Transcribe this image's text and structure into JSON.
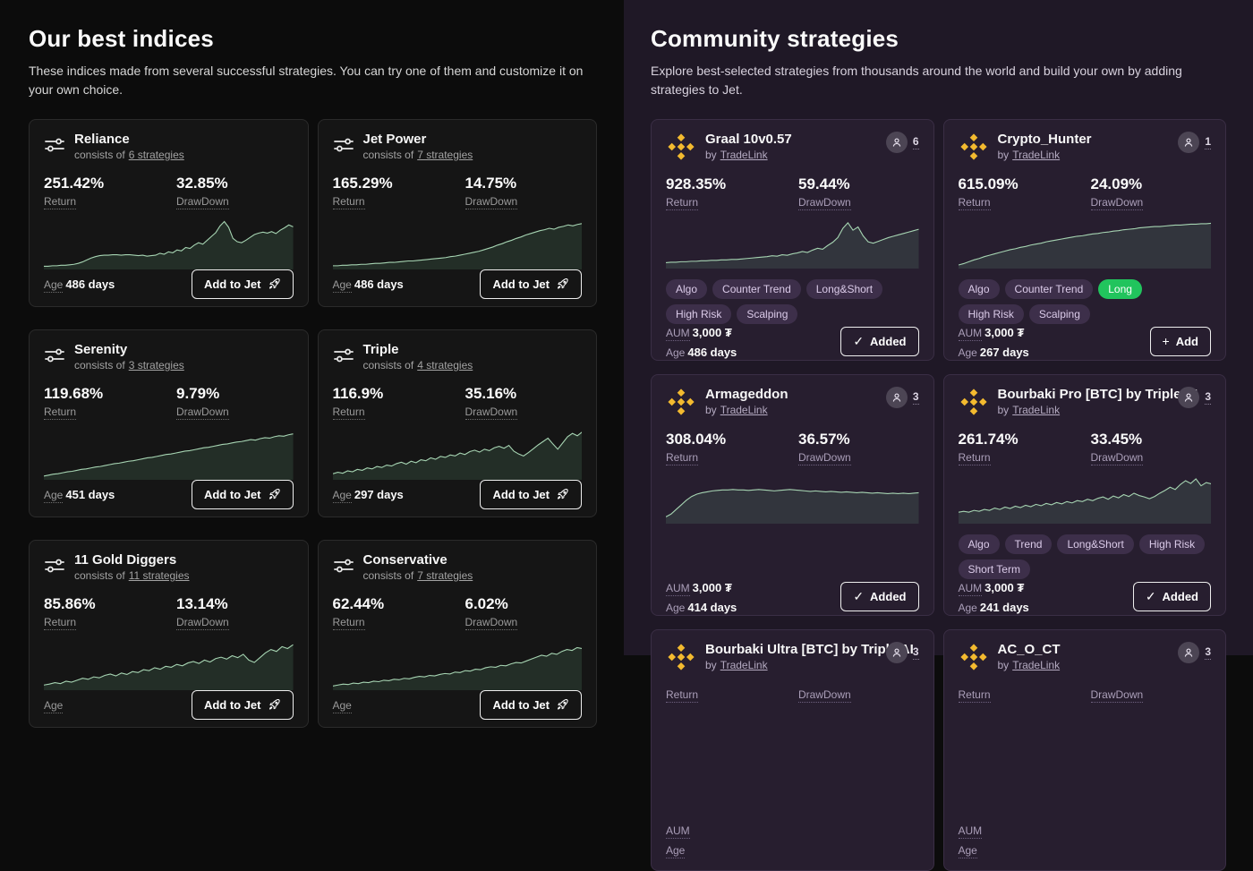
{
  "labels": {
    "consists_prefix": "consists of",
    "return": "Return",
    "drawdown": "DrawDown",
    "age": "Age",
    "aum": "AUM",
    "by": "by",
    "add_to_jet": "Add to Jet",
    "added": "Added",
    "add": "Add"
  },
  "icons": {
    "check": "✓",
    "plus": "+"
  },
  "colors": {
    "left_bg": "#0c0c0c",
    "right_bg": "#1f1826",
    "index_card_bg": "#151515",
    "strategy_card_bg": "#271e2f",
    "chart_line": "#a6d4b2",
    "chart_fill": "rgba(122,199,147,0.14)",
    "tag_bg": "#3d2f4a",
    "tag_green": "#21c45d",
    "binance_gold": "#f3ba2f"
  },
  "indices": {
    "title": "Our best indices",
    "subtitle": "These indices made from several successful strategies. You can try one of them and customize it on your own choice.",
    "cards": [
      {
        "name": "Reliance",
        "strategies_link": "6 strategies",
        "return": "251.42%",
        "drawdown": "32.85%",
        "age": "486 days",
        "sparkline": [
          4,
          4,
          5,
          5,
          6,
          6,
          7,
          8,
          10,
          13,
          17,
          21,
          24,
          26,
          27,
          27,
          28,
          28,
          27,
          28,
          28,
          27,
          26,
          27,
          25,
          26,
          27,
          31,
          29,
          34,
          32,
          38,
          36,
          43,
          41,
          48,
          53,
          50,
          58,
          66,
          74,
          88,
          97,
          85,
          62,
          55,
          53,
          58,
          64,
          70,
          73,
          75,
          73,
          76,
          72,
          79,
          84,
          90,
          86
        ]
      },
      {
        "name": "Jet Power",
        "strategies_link": "7 strategies",
        "return": "165.29%",
        "drawdown": "14.75%",
        "age": "486 days",
        "sparkline": [
          5,
          5,
          6,
          6,
          7,
          7,
          8,
          8,
          9,
          10,
          10,
          11,
          12,
          12,
          13,
          14,
          15,
          15,
          16,
          17,
          18,
          19,
          20,
          21,
          22,
          24,
          25,
          27,
          29,
          31,
          33,
          35,
          38,
          41,
          44,
          48,
          51,
          55,
          58,
          62,
          65,
          69,
          72,
          75,
          78,
          80,
          83,
          81,
          85,
          87,
          90,
          88,
          91,
          93
        ]
      },
      {
        "name": "Serenity",
        "strategies_link": "3 strategies",
        "return": "119.68%",
        "drawdown": "9.79%",
        "age": "451 days",
        "sparkline": [
          5,
          7,
          9,
          10,
          12,
          14,
          15,
          17,
          19,
          20,
          22,
          24,
          25,
          27,
          29,
          31,
          32,
          34,
          36,
          37,
          39,
          41,
          43,
          44,
          46,
          48,
          50,
          51,
          53,
          55,
          57,
          58,
          60,
          62,
          64,
          65,
          67,
          69,
          71,
          72,
          74,
          76,
          77,
          79,
          81,
          80,
          83,
          85,
          84,
          87,
          89,
          88,
          91,
          93
        ]
      },
      {
        "name": "Triple",
        "strategies_link": "4 strategies",
        "return": "116.9%",
        "drawdown": "35.16%",
        "age": "297 days",
        "sparkline": [
          10,
          13,
          11,
          16,
          14,
          19,
          17,
          22,
          20,
          25,
          23,
          28,
          26,
          31,
          34,
          30,
          36,
          33,
          39,
          37,
          43,
          40,
          46,
          44,
          49,
          47,
          53,
          50,
          56,
          59,
          55,
          61,
          58,
          64,
          67,
          63,
          69,
          57,
          51,
          47,
          54,
          62,
          70,
          77,
          84,
          72,
          61,
          74,
          87,
          94,
          89,
          97
        ]
      },
      {
        "name": "11 Gold Diggers",
        "strategies_link": "11 strategies",
        "return": "85.86%",
        "drawdown": "13.14%",
        "age": "",
        "sparkline": [
          8,
          10,
          13,
          11,
          16,
          14,
          18,
          22,
          20,
          25,
          23,
          28,
          31,
          27,
          33,
          30,
          36,
          34,
          40,
          38,
          44,
          41,
          47,
          45,
          51,
          48,
          54,
          57,
          53,
          60,
          56,
          63,
          66,
          62,
          69,
          65,
          72,
          60,
          55,
          65,
          75,
          82,
          78,
          88,
          84,
          92
        ]
      },
      {
        "name": "Conservative",
        "strategies_link": "7 strategies",
        "return": "62.44%",
        "drawdown": "6.02%",
        "age": "",
        "sparkline": [
          6,
          8,
          10,
          9,
          12,
          11,
          14,
          13,
          16,
          15,
          18,
          17,
          20,
          19,
          22,
          21,
          24,
          26,
          25,
          28,
          27,
          30,
          32,
          31,
          35,
          34,
          38,
          37,
          41,
          40,
          44,
          46,
          45,
          49,
          48,
          52,
          55,
          54,
          58,
          62,
          66,
          70,
          68,
          74,
          72,
          78,
          82,
          80,
          86,
          84
        ]
      }
    ]
  },
  "community": {
    "title": "Community strategies",
    "subtitle": "Explore best-selected strategies from thousands around the world and build your own by adding strategies to Jet.",
    "cards": [
      {
        "name": "Graal 10v0.57",
        "author": "TradeLink",
        "copiers": "6",
        "return": "928.35%",
        "drawdown": "59.44%",
        "tags": [
          {
            "label": "Algo"
          },
          {
            "label": "Counter Trend"
          },
          {
            "label": "Long&Short"
          },
          {
            "label": "High Risk"
          },
          {
            "label": "Scalping"
          }
        ],
        "aum": "3,000 ₮",
        "age": "486 days",
        "action": "added",
        "sparkline": [
          10,
          11,
          11,
          12,
          12,
          13,
          13,
          14,
          14,
          15,
          15,
          16,
          16,
          17,
          17,
          18,
          19,
          20,
          21,
          22,
          23,
          25,
          24,
          27,
          26,
          29,
          31,
          34,
          32,
          37,
          41,
          39,
          47,
          54,
          64,
          84,
          96,
          80,
          87,
          68,
          55,
          52,
          56,
          60,
          64,
          67,
          70,
          73,
          76,
          79,
          82
        ]
      },
      {
        "name": "Crypto_Hunter",
        "author": "TradeLink",
        "copiers": "1",
        "return": "615.09%",
        "drawdown": "24.09%",
        "tags": [
          {
            "label": "Algo"
          },
          {
            "label": "Counter Trend"
          },
          {
            "label": "Long",
            "variant": "green"
          },
          {
            "label": "High Risk"
          },
          {
            "label": "Scalping"
          }
        ],
        "aum": "3,000 ₮",
        "age": "267 days",
        "action": "add",
        "sparkline": [
          5,
          8,
          12,
          16,
          19,
          23,
          26,
          29,
          32,
          35,
          38,
          40,
          43,
          45,
          48,
          50,
          52,
          55,
          57,
          59,
          61,
          63,
          65,
          67,
          68,
          70,
          72,
          73,
          75,
          76,
          78,
          79,
          81,
          82,
          83,
          85,
          86,
          87,
          88,
          88,
          89,
          90,
          91,
          91,
          92,
          93,
          93,
          94,
          94,
          95
        ]
      },
      {
        "name": "Armageddon",
        "author": "TradeLink",
        "copiers": "3",
        "return": "308.04%",
        "drawdown": "36.57%",
        "tags": [],
        "aum": "3,000 ₮",
        "age": "414 days",
        "action": "added",
        "sparkline": [
          12,
          18,
          28,
          38,
          48,
          56,
          61,
          64,
          66,
          68,
          69,
          70,
          70,
          71,
          70,
          70,
          69,
          70,
          71,
          70,
          69,
          68,
          69,
          70,
          71,
          70,
          69,
          68,
          67,
          68,
          67,
          66,
          67,
          66,
          65,
          66,
          65,
          64,
          65,
          64,
          63,
          64,
          63,
          62,
          63,
          62,
          63,
          62,
          63,
          64
        ]
      },
      {
        "name": "Bourbaki Pro [BTC] by Triple AI",
        "author": "TradeLink",
        "copiers": "3",
        "return": "261.74%",
        "drawdown": "33.45%",
        "tags": [
          {
            "label": "Algo"
          },
          {
            "label": "Trend"
          },
          {
            "label": "Long&Short"
          },
          {
            "label": "High Risk"
          },
          {
            "label": "Short Term"
          }
        ],
        "aum": "3,000 ₮",
        "age": "241 days",
        "action": "added",
        "sparkline": [
          22,
          24,
          22,
          26,
          24,
          28,
          26,
          31,
          28,
          33,
          30,
          35,
          32,
          37,
          34,
          39,
          36,
          41,
          38,
          43,
          40,
          45,
          42,
          47,
          45,
          50,
          47,
          52,
          55,
          50,
          57,
          53,
          60,
          56,
          63,
          58,
          55,
          51,
          56,
          63,
          69,
          76,
          71,
          82,
          90,
          84,
          94,
          79,
          86,
          83
        ]
      },
      {
        "name": "Bourbaki Ultra [BTC] by Triple AI",
        "author": "TradeLink",
        "copiers": "3",
        "return": "",
        "drawdown": "",
        "tags": [],
        "aum": "",
        "age": "",
        "action": "",
        "sparkline": []
      },
      {
        "name": "AC_O_CT",
        "author": "TradeLink",
        "copiers": "3",
        "return": "",
        "drawdown": "",
        "tags": [],
        "aum": "",
        "age": "",
        "action": "",
        "sparkline": []
      }
    ]
  }
}
